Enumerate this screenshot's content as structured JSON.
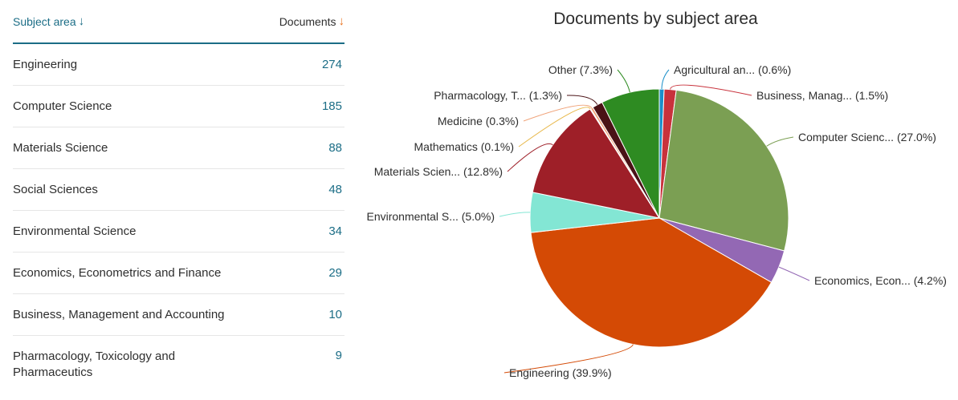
{
  "table": {
    "header": {
      "subject_label": "Subject area",
      "documents_label": "Documents"
    },
    "rows": [
      {
        "name": "Engineering",
        "count": "274"
      },
      {
        "name": "Computer Science",
        "count": "185"
      },
      {
        "name": "Materials Science",
        "count": "88"
      },
      {
        "name": "Social Sciences",
        "count": "48"
      },
      {
        "name": "Environmental Science",
        "count": "34"
      },
      {
        "name": "Economics, Econometrics and Finance",
        "count": "29"
      },
      {
        "name": "Business, Management and Accounting",
        "count": "10"
      },
      {
        "name": "Pharmacology, Toxicology and Pharmaceutics",
        "count": "9"
      }
    ]
  },
  "colors": {
    "accent": "#1b6d86",
    "sort_arrow": "#e9711c"
  },
  "chart_data": {
    "type": "pie",
    "title": "Documents by subject area",
    "slices": [
      {
        "label": "Agricultural an... (0.6%)",
        "value": 0.6,
        "color": "#1a8fc9"
      },
      {
        "label": "Business, Manag... (1.5%)",
        "value": 1.5,
        "color": "#c8323c"
      },
      {
        "label": "Computer Scienc... (27.0%)",
        "value": 27.0,
        "color": "#7b9f53"
      },
      {
        "label": "Economics, Econ... (4.2%)",
        "value": 4.2,
        "color": "#9368b4"
      },
      {
        "label": "Engineering (39.9%)",
        "value": 39.9,
        "color": "#d44a05"
      },
      {
        "label": "Environmental S... (5.0%)",
        "value": 5.0,
        "color": "#83e6d4"
      },
      {
        "label": "Materials Scien... (12.8%)",
        "value": 12.8,
        "color": "#9e1f28"
      },
      {
        "label": "Mathematics (0.1%)",
        "value": 0.1,
        "color": "#e8b84a"
      },
      {
        "label": "Medicine (0.3%)",
        "value": 0.3,
        "color": "#f0a37a"
      },
      {
        "label": "Pharmacology, T... (1.3%)",
        "value": 1.3,
        "color": "#4a1216"
      },
      {
        "label": "Other (7.3%)",
        "value": 7.3,
        "color": "#2e8b22"
      }
    ]
  }
}
